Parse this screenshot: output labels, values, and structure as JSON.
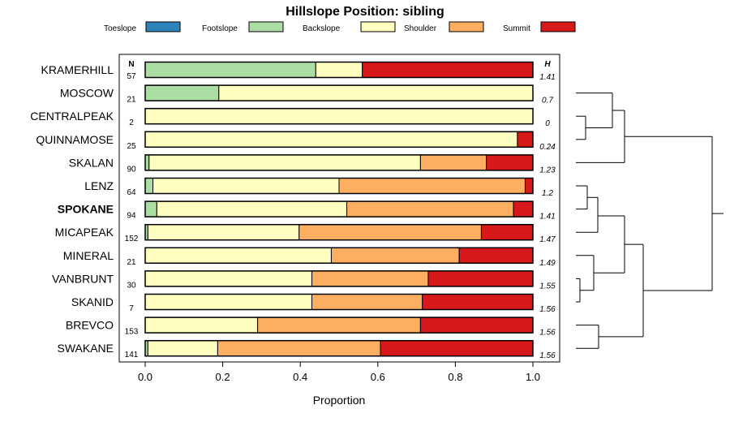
{
  "chart_data": {
    "type": "bar",
    "stacked": true,
    "orientation": "horizontal",
    "title": "Hillslope Position: sibling",
    "xlabel": "Proportion",
    "xlim": [
      0,
      1
    ],
    "x_ticks": [
      "0.0",
      "0.2",
      "0.4",
      "0.6",
      "0.8",
      "1.0"
    ],
    "n_header": "N",
    "h_header": "H",
    "highlight": "SPOKANE",
    "legend_position": "top",
    "legend": [
      {
        "name": "Toeslope",
        "color": "#2b83ba"
      },
      {
        "name": "Footslope",
        "color": "#abdda4"
      },
      {
        "name": "Backslope",
        "color": "#ffffbf"
      },
      {
        "name": "Shoulder",
        "color": "#fdae61"
      },
      {
        "name": "Summit",
        "color": "#d7191c"
      }
    ],
    "rows": [
      {
        "label": "KRAMERHILL",
        "n": "57",
        "h": "1.41",
        "values": [
          0,
          0.44,
          0.12,
          0,
          0.44
        ]
      },
      {
        "label": "MOSCOW",
        "n": "21",
        "h": "0.7",
        "values": [
          0,
          0.19,
          0.81,
          0,
          0
        ]
      },
      {
        "label": "CENTRALPEAK",
        "n": "2",
        "h": "0",
        "values": [
          0,
          0,
          1.0,
          0,
          0
        ]
      },
      {
        "label": "QUINNAMOSE",
        "n": "25",
        "h": "0.24",
        "values": [
          0,
          0,
          0.96,
          0,
          0.04
        ]
      },
      {
        "label": "SKALAN",
        "n": "90",
        "h": "1.23",
        "values": [
          0,
          0.01,
          0.7,
          0.17,
          0.12
        ]
      },
      {
        "label": "LENZ",
        "n": "64",
        "h": "1.2",
        "values": [
          0,
          0.02,
          0.48,
          0.48,
          0.02
        ]
      },
      {
        "label": "SPOKANE",
        "n": "94",
        "h": "1.41",
        "values": [
          0,
          0.03,
          0.49,
          0.43,
          0.05
        ]
      },
      {
        "label": "MICAPEAK",
        "n": "152",
        "h": "1.47",
        "values": [
          0,
          0.007,
          0.39,
          0.47,
          0.133
        ]
      },
      {
        "label": "MINERAL",
        "n": "21",
        "h": "1.49",
        "values": [
          0,
          0,
          0.48,
          0.33,
          0.19
        ]
      },
      {
        "label": "VANBRUNT",
        "n": "30",
        "h": "1.55",
        "values": [
          0,
          0,
          0.43,
          0.3,
          0.27
        ]
      },
      {
        "label": "SKANID",
        "n": "7",
        "h": "1.56",
        "values": [
          0,
          0,
          0.43,
          0.285,
          0.285
        ]
      },
      {
        "label": "BREVCO",
        "n": "153",
        "h": "1.56",
        "values": [
          0,
          0,
          0.29,
          0.42,
          0.29
        ]
      },
      {
        "label": "SWAKANE",
        "n": "141",
        "h": "1.56",
        "values": [
          0,
          0.007,
          0.18,
          0.42,
          0.393
        ]
      }
    ]
  }
}
